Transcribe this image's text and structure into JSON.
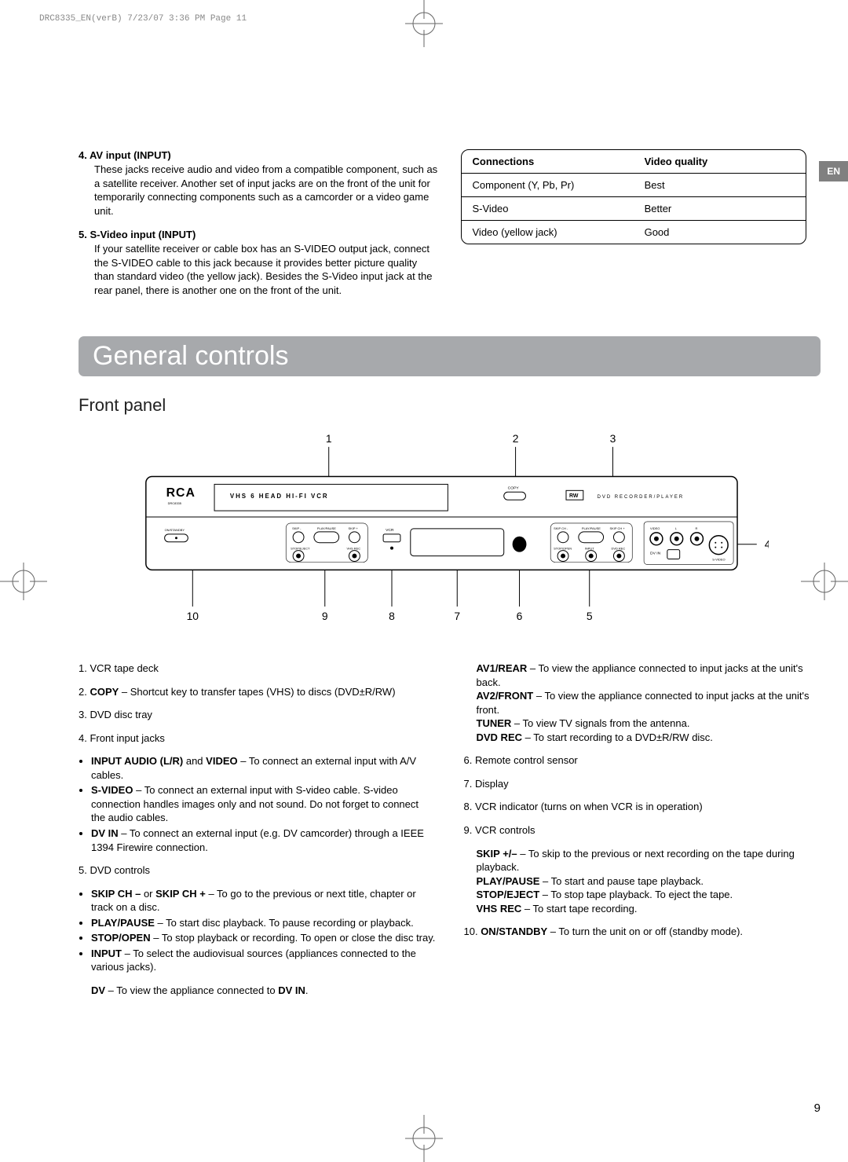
{
  "meta": {
    "header_slug": "DRC8335_EN(verB)  7/23/07  3:36 PM  Page 11",
    "lang_tab": "EN",
    "page_number": "9"
  },
  "crop_colors": {
    "line": "#666666",
    "circle_fill": "#ffffff"
  },
  "top_left": {
    "items": [
      {
        "num": "4.",
        "title": "AV input (INPUT)",
        "body": "These jacks receive audio and video from a compatible component, such as a satellite receiver. Another set of input jacks are on the front of the unit for temporarily connecting components such as a camcorder or a video game unit."
      },
      {
        "num": "5.",
        "title": "S-Video input (INPUT)",
        "body": "If your satellite receiver or cable box has an S-VIDEO output jack, connect the S-VIDEO cable to this jack because it provides better picture quality than standard video (the yellow jack). Besides the S-Video input jack at the rear panel, there is another one on the front of the unit."
      }
    ]
  },
  "conn_table": {
    "header": [
      "Connections",
      "Video quality"
    ],
    "rows": [
      [
        "Component (Y, Pb, Pr)",
        "Best"
      ],
      [
        "S-Video",
        "Better"
      ],
      [
        "Video (yellow jack)",
        "Good"
      ]
    ],
    "border_color": "#000000",
    "border_radius": 10
  },
  "section_banner": {
    "title": "General controls",
    "bg": "#a7a9ac",
    "fg": "#ffffff"
  },
  "subhead": "Front panel",
  "diagram": {
    "callout_top": [
      "1",
      "2",
      "3"
    ],
    "callout_bottom": [
      "10",
      "9",
      "8",
      "7",
      "6",
      "5"
    ],
    "callout_right": [
      "4"
    ],
    "labels": {
      "brand": "RCA",
      "model": "DRC8335",
      "vcr_label": "VHS  6 HEAD HI-FI VCR",
      "dvd_label": "DVD RECORDER/PLAYER",
      "rw_badge": "RW",
      "copy_label": "COPY",
      "vcr_btn": "VCR",
      "dv_in": "DV IN",
      "video_lbl": "VIDEO",
      "svideo_lbl": "S-VIDEO",
      "standby_lbl": "ON/STANDBY",
      "skip_minus": "SKIP -",
      "skip_plus": "SKIP +",
      "play_pause": "PLAY/PAUSE",
      "stop_eject": "STOP/EJECT",
      "vhs_rec": "VHS REC",
      "skip_ch_minus": "SKIP CH -",
      "skip_ch_plus": "SKIP CH +",
      "stop_open": "STOP/OPEN",
      "input_lbl": "INPUT",
      "dvd_rec": "DVD REC",
      "l": "L",
      "r": "R"
    },
    "fontsize_callout": 14,
    "fontsize_small": 5,
    "line_color": "#000000",
    "panel_stroke": "#000000",
    "panel_fill": "#ffffff"
  },
  "bottom": {
    "left": [
      {
        "type": "line",
        "num": "1.",
        "text": "VCR tape deck"
      },
      {
        "type": "line",
        "num": "2.",
        "bold": "COPY",
        "text": " – Shortcut key to transfer tapes (VHS) to discs (DVD±R/RW)"
      },
      {
        "type": "line",
        "num": "3.",
        "text": "DVD disc tray"
      },
      {
        "type": "line",
        "num": "4.",
        "text": "Front input jacks"
      },
      {
        "type": "bullets",
        "items": [
          {
            "pre_bold": "INPUT AUDIO (L/R)",
            "mid": " and ",
            "mid_bold": "VIDEO",
            "post": " – To connect an external input with A/V cables."
          },
          {
            "pre_bold": "S-VIDEO",
            "post": " – To connect an external input with S-video cable. S-video connection handles images only and not sound. Do not forget to connect the audio cables."
          },
          {
            "pre_bold": "DV IN",
            "post": " – To connect an external input (e.g. DV camcorder) through a IEEE 1394 Firewire connection."
          }
        ]
      },
      {
        "type": "line",
        "num": "5.",
        "text": "DVD controls"
      },
      {
        "type": "bullets",
        "items": [
          {
            "pre_bold": "SKIP CH –",
            "mid": " or ",
            "mid_bold": "SKIP CH + ",
            "post": " – To go to the previous or next title, chapter or track on a disc."
          },
          {
            "pre_bold": "PLAY/PAUSE",
            "post": " – To start disc playback. To pause recording or playback."
          },
          {
            "pre_bold": "STOP/OPEN",
            "post": " – To stop playback or recording. To open or close the disc tray."
          },
          {
            "pre_bold": "INPUT",
            "post": " – To select the audiovisual sources (appliances connected to the various jacks)."
          }
        ]
      },
      {
        "type": "indent",
        "lines": [
          {
            "bold": "DV",
            "post": " – To view the appliance connected to ",
            "bold2": "DV IN",
            "post2": "."
          }
        ]
      }
    ],
    "right": [
      {
        "type": "indent",
        "lines": [
          {
            "bold": "AV1/REAR",
            "post": " – To view the appliance connected to input jacks at the unit's back."
          },
          {
            "bold": "AV2/FRONT",
            "post": " – To view the appliance connected to input jacks at the unit's front."
          },
          {
            "bold": "TUNER",
            "post": " – To view TV signals from the antenna."
          },
          {
            "bold": "DVD REC",
            "post": " – To start recording to a DVD±R/RW disc."
          }
        ]
      },
      {
        "type": "line",
        "num": "6.",
        "text": "Remote control sensor"
      },
      {
        "type": "line",
        "num": "7.",
        "text": "Display"
      },
      {
        "type": "line",
        "num": "8.",
        "text": "VCR indicator (turns on when VCR is in operation)"
      },
      {
        "type": "line",
        "num": "9.",
        "text": "VCR controls"
      },
      {
        "type": "indent",
        "lines": [
          {
            "bold": "SKIP +/–",
            "post": " – To skip to the previous or next recording on the tape during playback."
          },
          {
            "bold": "PLAY/PAUSE",
            "post": " – To start and pause tape playback."
          },
          {
            "bold": "STOP/EJECT",
            "post": " – To stop tape playback. To eject the tape."
          },
          {
            "bold": "VHS REC",
            "post": " – To start tape recording."
          }
        ]
      },
      {
        "type": "line",
        "num": "10.",
        "bold": "ON/STANDBY",
        "text": " – To turn the unit on or off (standby mode)."
      }
    ]
  }
}
